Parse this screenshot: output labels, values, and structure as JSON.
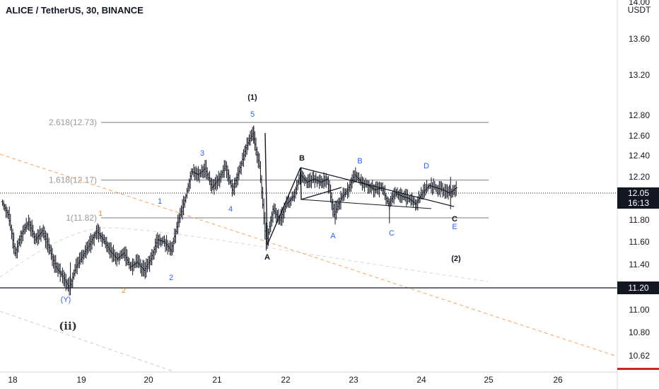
{
  "header": {
    "title": "ALICE / TetherUS, 30, BINANCE"
  },
  "colors": {
    "price_tag": "#131722",
    "current_price_tag": "#131722",
    "support_tag": "#131722",
    "bottom_tag": "#c62828",
    "fib_line": "#787b86",
    "orange_dash": "#f7a35c",
    "wave_blue": "#2962ff",
    "wave_black": "#131722",
    "wave_orange": "#f57c00",
    "bars": "#131722"
  },
  "chart_data": {
    "type": "line",
    "title": "ALICE / TetherUS, 30, BINANCE",
    "currency_label": "USDT",
    "y_ticks": [
      "14.00",
      "13.60",
      "13.20",
      "12.80",
      "12.60",
      "12.40",
      "12.20",
      "11.80",
      "11.60",
      "11.40",
      "11.00",
      "10.80",
      "10.62"
    ],
    "x_ticks": [
      "18",
      "19",
      "20",
      "21",
      "22",
      "23",
      "24",
      "25",
      "26"
    ],
    "ylim": [
      10.58,
      14.02
    ],
    "current_price": {
      "value": "12.05",
      "countdown": "16:13"
    },
    "support_level": {
      "value": "11.20"
    },
    "bottom_level": {
      "value": "10.62"
    },
    "fib_levels": [
      {
        "label": "2.618(12.73)",
        "value": 12.73
      },
      {
        "label": "1.618(12.17)",
        "value": 12.17
      },
      {
        "label": "1(11.82)",
        "value": 11.82
      }
    ],
    "price_series": [
      [
        17.85,
        11.97
      ],
      [
        17.95,
        11.85
      ],
      [
        18.05,
        11.5
      ],
      [
        18.15,
        11.68
      ],
      [
        18.25,
        11.78
      ],
      [
        18.35,
        11.62
      ],
      [
        18.45,
        11.7
      ],
      [
        18.55,
        11.55
      ],
      [
        18.65,
        11.38
      ],
      [
        18.75,
        11.3
      ],
      [
        18.85,
        11.2
      ],
      [
        18.95,
        11.38
      ],
      [
        19.05,
        11.48
      ],
      [
        19.15,
        11.58
      ],
      [
        19.25,
        11.7
      ],
      [
        19.35,
        11.62
      ],
      [
        19.45,
        11.52
      ],
      [
        19.55,
        11.45
      ],
      [
        19.65,
        11.5
      ],
      [
        19.75,
        11.38
      ],
      [
        19.85,
        11.42
      ],
      [
        19.95,
        11.35
      ],
      [
        20.05,
        11.45
      ],
      [
        20.15,
        11.62
      ],
      [
        20.25,
        11.6
      ],
      [
        20.35,
        11.52
      ],
      [
        20.45,
        11.78
      ],
      [
        20.55,
        11.98
      ],
      [
        20.65,
        12.25
      ],
      [
        20.75,
        12.22
      ],
      [
        20.85,
        12.28
      ],
      [
        20.95,
        12.1
      ],
      [
        21.05,
        12.18
      ],
      [
        21.15,
        12.3
      ],
      [
        21.25,
        12.08
      ],
      [
        21.35,
        12.25
      ],
      [
        21.45,
        12.48
      ],
      [
        21.55,
        12.62
      ],
      [
        21.65,
        12.3
      ],
      [
        21.75,
        11.58
      ],
      [
        21.85,
        11.9
      ],
      [
        21.95,
        11.8
      ],
      [
        22.05,
        11.95
      ],
      [
        22.15,
        12.02
      ],
      [
        22.25,
        12.22
      ],
      [
        22.35,
        12.15
      ],
      [
        22.45,
        12.18
      ],
      [
        22.55,
        12.15
      ],
      [
        22.65,
        12.18
      ],
      [
        22.75,
        11.85
      ],
      [
        22.85,
        12.0
      ],
      [
        22.95,
        12.08
      ],
      [
        23.05,
        12.22
      ],
      [
        23.15,
        12.15
      ],
      [
        23.25,
        12.12
      ],
      [
        23.35,
        12.08
      ],
      [
        23.45,
        12.1
      ],
      [
        23.55,
        11.95
      ],
      [
        23.65,
        12.05
      ],
      [
        23.75,
        12.02
      ],
      [
        23.85,
        12.0
      ],
      [
        23.95,
        11.95
      ],
      [
        24.05,
        12.05
      ],
      [
        24.15,
        12.12
      ],
      [
        24.25,
        12.1
      ],
      [
        24.35,
        12.08
      ],
      [
        24.45,
        12.05
      ],
      [
        24.55,
        12.1
      ]
    ],
    "wave_labels": [
      {
        "text": "(1)",
        "style": "black_normal"
      },
      {
        "text": "5",
        "style": "blue"
      },
      {
        "text": "3",
        "style": "blue"
      },
      {
        "text": "1",
        "style": "blue"
      },
      {
        "text": "4",
        "style": "blue"
      },
      {
        "text": "2",
        "style": "blue"
      },
      {
        "text": "1",
        "style": "orange"
      },
      {
        "text": "2",
        "style": "orange"
      },
      {
        "text": "(Y)",
        "style": "blue"
      },
      {
        "text": "(ii)",
        "style": "roman"
      },
      {
        "text": "B",
        "style": "black"
      },
      {
        "text": "A",
        "style": "black"
      },
      {
        "text": "B",
        "style": "blue"
      },
      {
        "text": "A",
        "style": "blue"
      },
      {
        "text": "C",
        "style": "blue"
      },
      {
        "text": "D",
        "style": "blue"
      },
      {
        "text": "C",
        "style": "black"
      },
      {
        "text": "E",
        "style": "blue"
      },
      {
        "text": "(2)",
        "style": "black_normal"
      }
    ]
  }
}
